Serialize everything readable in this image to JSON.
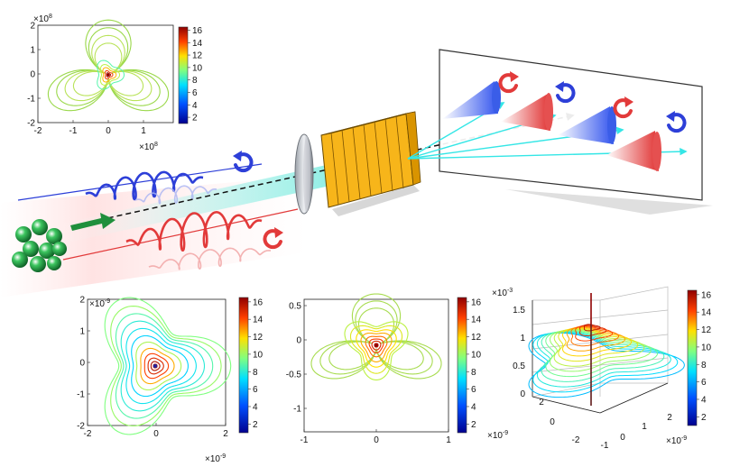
{
  "colorbar_ticks": [
    "2",
    "4",
    "6",
    "8",
    "10",
    "12",
    "14",
    "16"
  ],
  "colors": {
    "red_beam": "#e23a3a",
    "blue_beam": "#2d3fd8",
    "cyan_beam": "#34e6e6",
    "grating": "#f7b51a",
    "green_particles": "#1f8f3c"
  },
  "panels": {
    "top_left": {
      "y_exp": "×10",
      "y_exp_sup": "8",
      "x_exp": "×10",
      "x_exp_sup": "8",
      "yticks": [
        "2",
        "1",
        "0",
        "-1",
        "-2"
      ],
      "xticks": [
        "-2",
        "-1",
        "0",
        "1"
      ]
    },
    "bottom_left": {
      "y_exp": "×10",
      "y_exp_sup": "-9",
      "x_exp": "×10",
      "x_exp_sup": "-9",
      "yticks": [
        "2",
        "1",
        "0",
        "-1",
        "-2"
      ],
      "xticks": [
        "-2",
        "0",
        "2"
      ]
    },
    "bottom_mid": {
      "yticks": [
        "0.5",
        "0",
        "-0.5",
        "-1"
      ],
      "xticks": [
        "-1",
        "0",
        "1"
      ]
    },
    "bottom_right": {
      "z_exp": "×10",
      "z_exp_sup": "-3",
      "zticks": [
        "1.5",
        "1",
        "0.5",
        "0"
      ],
      "yticks": [
        "2",
        "0",
        "-2"
      ],
      "xticks": [
        "-1",
        "0",
        "1",
        "2"
      ],
      "y_exp": "×10",
      "y_exp_sup": "-9",
      "x_exp": "×10",
      "x_exp_sup": "-9"
    }
  },
  "icons": [
    "rotation-arrow-icon"
  ]
}
